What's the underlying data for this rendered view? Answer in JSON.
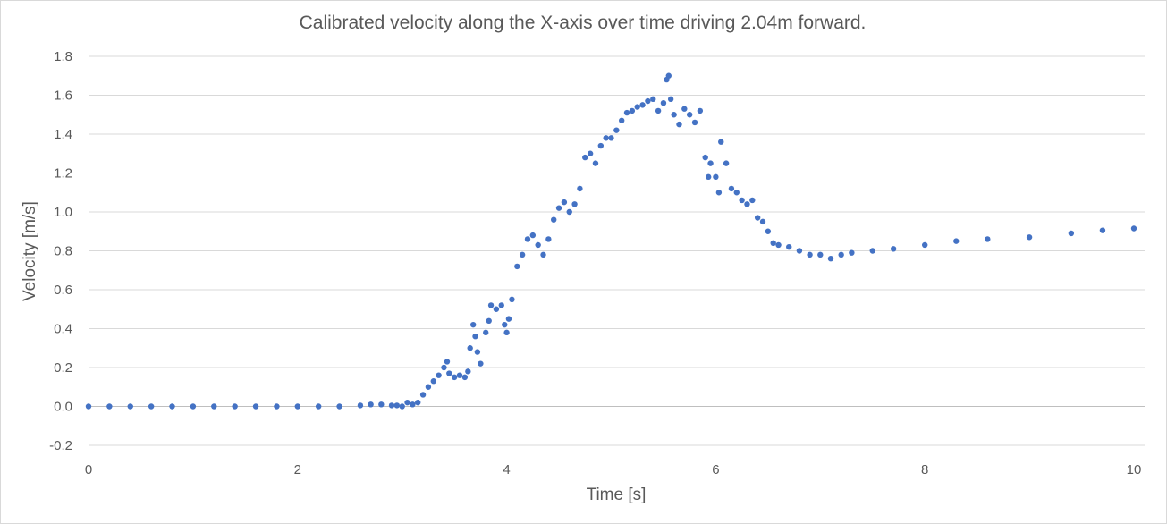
{
  "chart_data": {
    "type": "scatter",
    "title": "Calibrated velocity along the X-axis over time driving 2.04m forward.",
    "xlabel": "Time [s]",
    "ylabel": "Velocity  [m/s]",
    "xlim": [
      0,
      10
    ],
    "ylim": [
      -0.2,
      1.8
    ],
    "xticks": [
      0,
      2,
      4,
      6,
      8,
      10
    ],
    "xtick_labels": [
      "0",
      "2",
      "4",
      "6",
      "8",
      "10"
    ],
    "yticks": [
      -0.2,
      0.0,
      0.2,
      0.4,
      0.6,
      0.8,
      1.0,
      1.2,
      1.4,
      1.6,
      1.8
    ],
    "ytick_labels": [
      "-0.2",
      "0.0",
      "0.2",
      "0.4",
      "0.6",
      "0.8",
      "1.0",
      "1.2",
      "1.4",
      "1.6",
      "1.8"
    ],
    "grid": "horizontal",
    "legend": "none",
    "marker_color": "#4472c4",
    "series": [
      {
        "x": [
          0.0,
          0.2,
          0.4,
          0.6,
          0.8,
          1.0,
          1.2,
          1.4,
          1.6,
          1.8,
          2.0,
          2.2,
          2.4,
          2.6,
          2.7,
          2.8,
          2.9,
          2.95,
          3.0,
          3.05,
          3.1,
          3.15,
          3.2,
          3.25,
          3.3,
          3.35,
          3.4,
          3.43,
          3.45,
          3.5,
          3.55,
          3.6,
          3.63,
          3.65,
          3.68,
          3.7,
          3.72,
          3.75,
          3.8,
          3.83,
          3.85,
          3.9,
          3.95,
          3.98,
          4.0,
          4.02,
          4.05,
          4.1,
          4.15,
          4.2,
          4.25,
          4.3,
          4.35,
          4.4,
          4.45,
          4.5,
          4.55,
          4.6,
          4.65,
          4.7,
          4.75,
          4.8,
          4.85,
          4.9,
          4.95,
          5.0,
          5.05,
          5.1,
          5.15,
          5.2,
          5.25,
          5.3,
          5.35,
          5.4,
          5.45,
          5.5,
          5.53,
          5.55,
          5.57,
          5.6,
          5.65,
          5.7,
          5.75,
          5.8,
          5.85,
          5.9,
          5.93,
          5.95,
          6.0,
          6.03,
          6.05,
          6.1,
          6.15,
          6.2,
          6.25,
          6.3,
          6.35,
          6.4,
          6.45,
          6.5,
          6.55,
          6.6,
          6.7,
          6.8,
          6.9,
          7.0,
          7.1,
          7.2,
          7.3,
          7.5,
          7.7,
          8.0,
          8.3,
          8.6,
          9.0,
          9.4,
          9.7,
          10.0
        ],
        "y": [
          0.0,
          0.0,
          0.0,
          0.0,
          0.0,
          0.0,
          0.0,
          0.0,
          0.0,
          0.0,
          0.0,
          0.0,
          0.0,
          0.005,
          0.01,
          0.01,
          0.005,
          0.005,
          0.0,
          0.02,
          0.01,
          0.02,
          0.06,
          0.1,
          0.13,
          0.16,
          0.2,
          0.23,
          0.17,
          0.15,
          0.16,
          0.15,
          0.18,
          0.3,
          0.42,
          0.36,
          0.28,
          0.22,
          0.38,
          0.44,
          0.52,
          0.5,
          0.52,
          0.42,
          0.38,
          0.45,
          0.55,
          0.72,
          0.78,
          0.86,
          0.88,
          0.83,
          0.78,
          0.86,
          0.96,
          1.02,
          1.05,
          1.0,
          1.04,
          1.12,
          1.28,
          1.3,
          1.25,
          1.34,
          1.38,
          1.38,
          1.42,
          1.47,
          1.51,
          1.52,
          1.54,
          1.55,
          1.57,
          1.58,
          1.52,
          1.56,
          1.68,
          1.7,
          1.58,
          1.5,
          1.45,
          1.53,
          1.5,
          1.46,
          1.52,
          1.28,
          1.18,
          1.25,
          1.18,
          1.1,
          1.36,
          1.25,
          1.12,
          1.1,
          1.06,
          1.04,
          1.06,
          0.97,
          0.95,
          0.9,
          0.84,
          0.83,
          0.82,
          0.8,
          0.78,
          0.78,
          0.76,
          0.78,
          0.79,
          0.8,
          0.81,
          0.83,
          0.85,
          0.86,
          0.87,
          0.89,
          0.905,
          0.915
        ]
      }
    ]
  }
}
